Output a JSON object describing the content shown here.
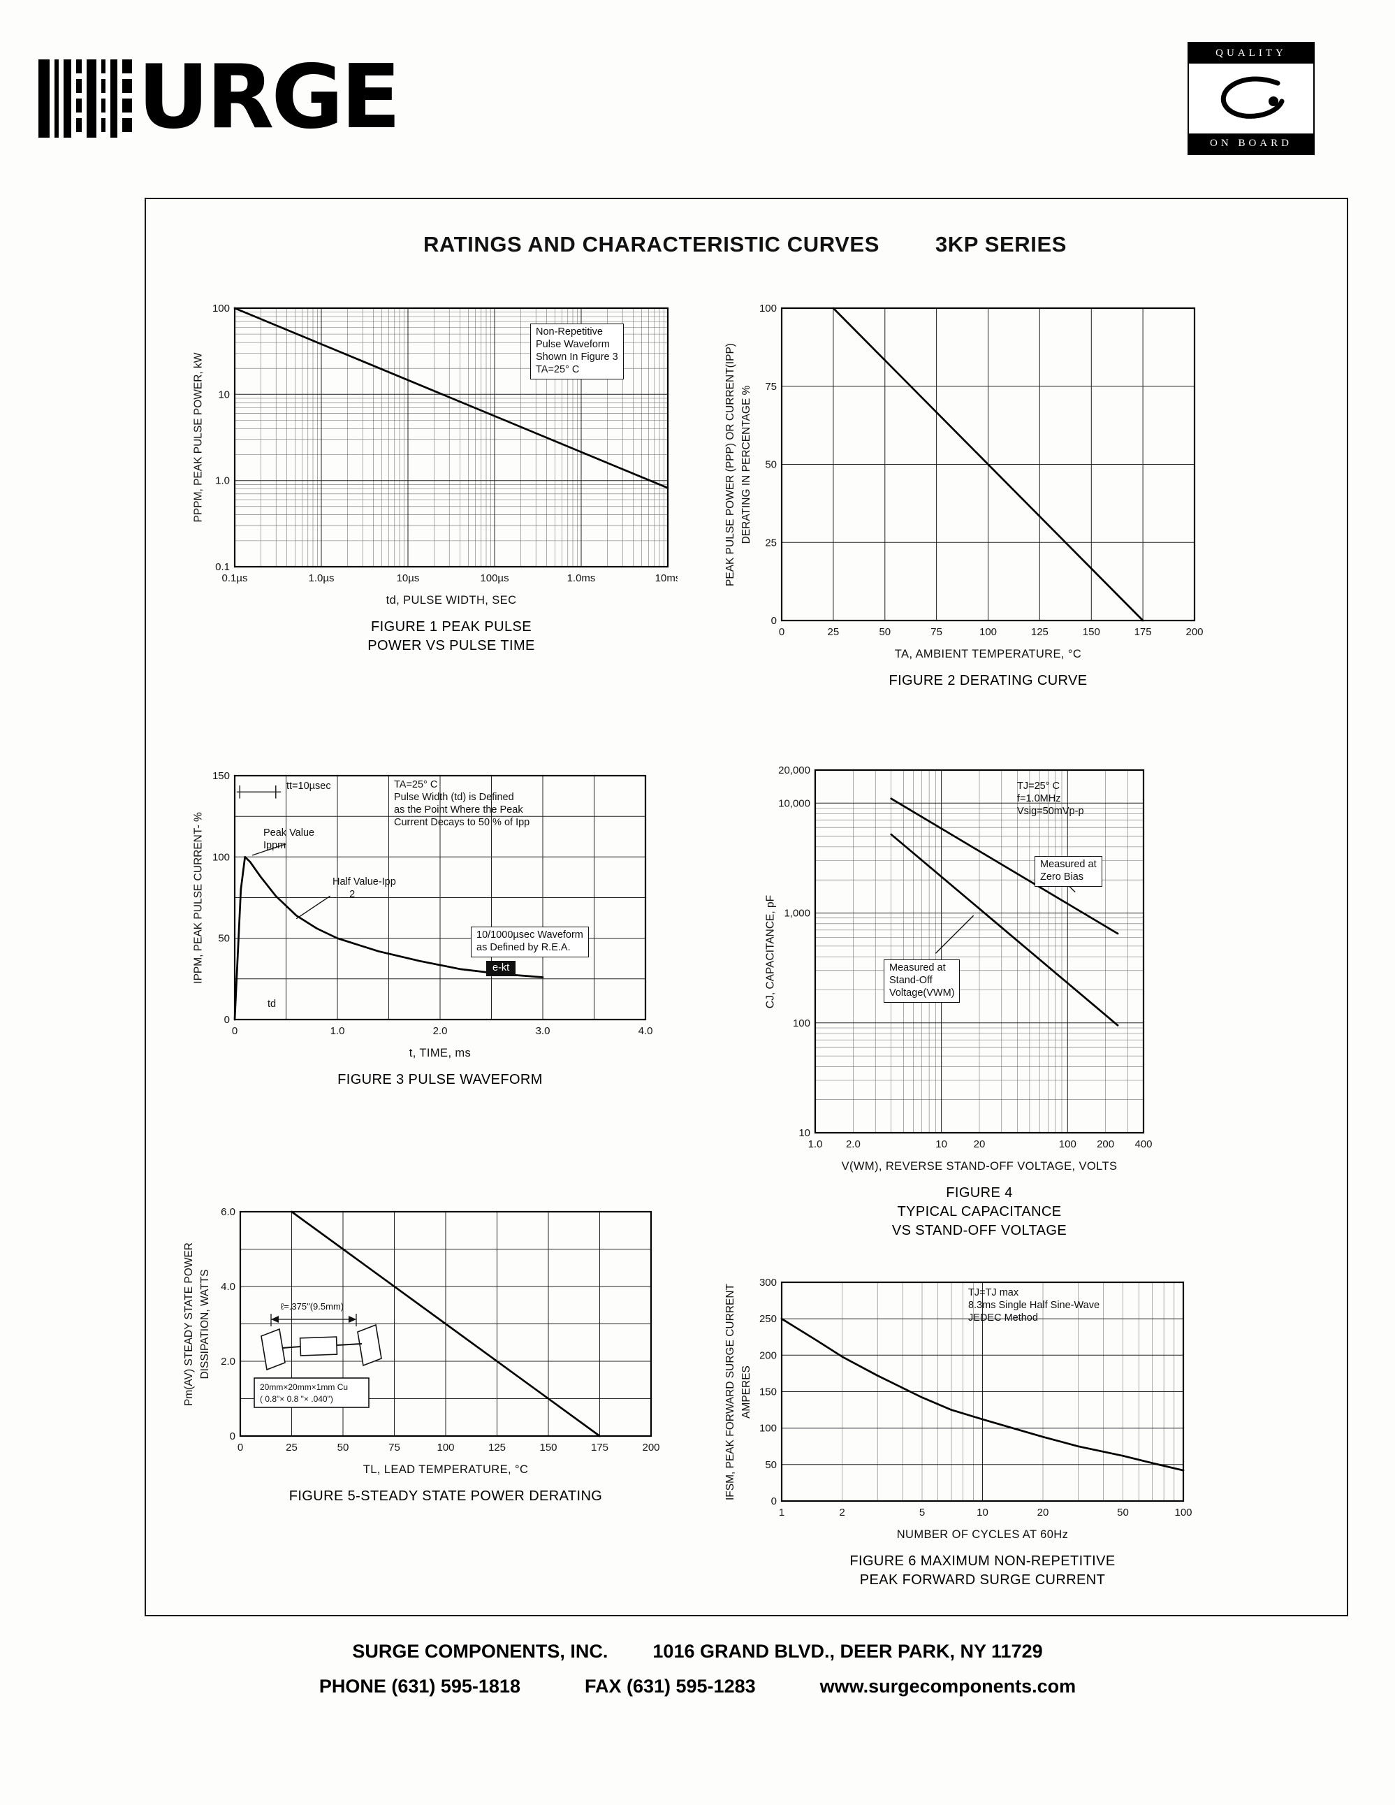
{
  "page": {
    "title": "RATINGS AND CHARACTERISTIC CURVES",
    "series": "3KP SERIES",
    "footer": {
      "company": "SURGE COMPONENTS, INC.",
      "address": "1016 GRAND BLVD., DEER PARK, NY  11729",
      "phone": "PHONE (631) 595-1818",
      "fax": "FAX  (631) 595-1283",
      "web": "www.surgecomponents.com"
    }
  },
  "logos": {
    "brand_text": "URGE",
    "quality_top": "QUALITY",
    "quality_bottom": "ON BOARD"
  },
  "figure5_inset": {
    "dim_label": "ℓ=.375\"(9.5mm)",
    "cu_line1": "20mm×20mm×1mm Cu",
    "cu_line2": "( 0.8\"× 0.8 \"× .040\")"
  },
  "chart_data": [
    {
      "id": "fig1",
      "type": "line",
      "caption": [
        "FIGURE 1 PEAK PULSE",
        "POWER VS PULSE TIME"
      ],
      "xlabel": "td, PULSE WIDTH, SEC",
      "ylabel": [
        "PPPM, PEAK PULSE POWER, kW"
      ],
      "x": {
        "type": "log",
        "min": 1e-07,
        "max": 0.01,
        "ticks": [
          {
            "v": 1e-07,
            "label": "0.1µs"
          },
          {
            "v": 1e-06,
            "label": "1.0µs"
          },
          {
            "v": 1e-05,
            "label": "10µs"
          },
          {
            "v": 0.0001,
            "label": "100µs"
          },
          {
            "v": 0.001,
            "label": "1.0ms"
          },
          {
            "v": 0.01,
            "label": "10ms"
          }
        ]
      },
      "y": {
        "type": "log",
        "min": 0.1,
        "max": 100,
        "ticks": [
          {
            "v": 0.1,
            "label": "0.1"
          },
          {
            "v": 1,
            "label": "1.0"
          },
          {
            "v": 10,
            "label": "10"
          },
          {
            "v": 100,
            "label": "100"
          }
        ]
      },
      "series": [
        {
          "name": "peak pulse power",
          "points": [
            [
              1e-07,
              100
            ],
            [
              0.01,
              0.82
            ]
          ]
        }
      ],
      "annotations": [
        {
          "x": 0.00026,
          "y": 66,
          "box": true,
          "lines": [
            "Non-Repetitive",
            "Pulse Waveform",
            "Shown In Figure 3",
            "TA=25° C"
          ]
        }
      ]
    },
    {
      "id": "fig2",
      "type": "line",
      "caption": [
        "FIGURE 2 DERATING CURVE"
      ],
      "xlabel": "TA, AMBIENT  TEMPERATURE, °C",
      "ylabel": [
        "PEAK PULSE POWER (PPP) OR CURRENT(IPP)",
        "DERATING IN PERCENTAGE %"
      ],
      "x": {
        "type": "linear",
        "min": 0,
        "max": 200,
        "grid": 25,
        "ticks": [
          {
            "v": 0,
            "label": "0"
          },
          {
            "v": 25,
            "label": "25"
          },
          {
            "v": 50,
            "label": "50"
          },
          {
            "v": 75,
            "label": "75"
          },
          {
            "v": 100,
            "label": "100"
          },
          {
            "v": 125,
            "label": "125"
          },
          {
            "v": 150,
            "label": "150"
          },
          {
            "v": 175,
            "label": "175"
          },
          {
            "v": 200,
            "label": "200"
          }
        ]
      },
      "y": {
        "type": "linear",
        "min": 0,
        "max": 100,
        "grid": 25,
        "ticks": [
          {
            "v": 0,
            "label": "0"
          },
          {
            "v": 25,
            "label": "25"
          },
          {
            "v": 50,
            "label": "50"
          },
          {
            "v": 75,
            "label": "75"
          },
          {
            "v": 100,
            "label": "100"
          }
        ]
      },
      "series": [
        {
          "name": "derating",
          "points": [
            [
              25,
              100
            ],
            [
              175,
              0
            ]
          ]
        }
      ],
      "annotations": []
    },
    {
      "id": "fig3",
      "type": "line",
      "caption": [
        "FIGURE 3  PULSE WAVEFORM"
      ],
      "xlabel": "t, TIME, ms",
      "ylabel": [
        "IPPM, PEAK PULSE CURRENT- %"
      ],
      "x": {
        "type": "linear",
        "min": 0,
        "max": 4,
        "grid": 0.5,
        "ticks": [
          {
            "v": 0,
            "label": "0"
          },
          {
            "v": 1,
            "label": "1.0"
          },
          {
            "v": 2,
            "label": "2.0"
          },
          {
            "v": 3,
            "label": "3.0"
          },
          {
            "v": 4,
            "label": "4.0"
          }
        ]
      },
      "y": {
        "type": "linear",
        "min": 0,
        "max": 150,
        "grid": 25,
        "ticks": [
          {
            "v": 0,
            "label": "0"
          },
          {
            "v": 50,
            "label": "50"
          },
          {
            "v": 100,
            "label": "100"
          },
          {
            "v": 150,
            "label": "150"
          }
        ]
      },
      "series": [
        {
          "name": "10/1000usec pulse waveform",
          "points": [
            [
              0,
              0
            ],
            [
              0.03,
              40
            ],
            [
              0.06,
              80
            ],
            [
              0.1,
              100
            ],
            [
              0.15,
              97
            ],
            [
              0.25,
              88
            ],
            [
              0.4,
              76
            ],
            [
              0.6,
              64
            ],
            [
              0.8,
              56
            ],
            [
              1.0,
              50
            ],
            [
              1.4,
              42
            ],
            [
              1.8,
              36
            ],
            [
              2.2,
              31
            ],
            [
              2.6,
              28
            ],
            [
              3.0,
              26
            ]
          ]
        }
      ],
      "lines": [
        {
          "x1": 0.02,
          "y1": 140,
          "x2": 0.45,
          "y2": 140
        },
        {
          "x1": 0.05,
          "y1": 136,
          "x2": 0.05,
          "y2": 144
        },
        {
          "x1": 0.4,
          "y1": 136,
          "x2": 0.4,
          "y2": 144
        },
        {
          "x1": 0.5,
          "y1": 108,
          "x2": 0.17,
          "y2": 101
        },
        {
          "x1": 0.93,
          "y1": 76,
          "x2": 0.6,
          "y2": 62
        }
      ],
      "annotations": [
        {
          "x": 0.5,
          "y": 147,
          "lines": [
            "tt=10µsec"
          ]
        },
        {
          "x": 1.55,
          "y": 148,
          "lines": [
            "TA=25° C",
            "Pulse Width (td) is Defined",
            "as the Point Where the Peak",
            "Current Decays to 50 % of Ipp"
          ]
        },
        {
          "x": 0.28,
          "y": 118,
          "lines": [
            "Peak Value",
            "Ippm"
          ]
        },
        {
          "x": 0.95,
          "y": 88,
          "lines": [
            "Half Value-Ipp",
            "      2"
          ]
        },
        {
          "x": 2.3,
          "y": 57,
          "box": true,
          "lines": [
            "10/1000µsec Waveform",
            "as Defined by R.E.A."
          ]
        },
        {
          "x": 2.45,
          "y": 36,
          "dark": true,
          "lines": [
            "e-kt"
          ]
        },
        {
          "x": 0.32,
          "y": 13,
          "lines": [
            "td"
          ]
        }
      ]
    },
    {
      "id": "fig4",
      "type": "line",
      "caption": [
        "FIGURE 4",
        "TYPICAL CAPACITANCE",
        "VS STAND-OFF VOLTAGE"
      ],
      "xlabel": "V(WM), REVERSE STAND-OFF VOLTAGE, VOLTS",
      "ylabel": [
        "CJ, CAPACITANCE, pF"
      ],
      "x": {
        "type": "log",
        "min": 1,
        "max": 400,
        "ticks": [
          {
            "v": 1,
            "label": "1.0"
          },
          {
            "v": 2,
            "label": "2.0"
          },
          {
            "v": 10,
            "label": "10"
          },
          {
            "v": 20,
            "label": "20"
          },
          {
            "v": 100,
            "label": "100"
          },
          {
            "v": 200,
            "label": "200"
          },
          {
            "v": 400,
            "label": "400"
          }
        ]
      },
      "y": {
        "type": "log",
        "min": 10,
        "max": 20000,
        "ticks": [
          {
            "v": 10,
            "label": "10"
          },
          {
            "v": 100,
            "label": "100"
          },
          {
            "v": 1000,
            "label": "1,000"
          },
          {
            "v": 10000,
            "label": "10,000"
          },
          {
            "v": 20000,
            "label": "20,000"
          }
        ]
      },
      "series": [
        {
          "name": "measured at zero bias",
          "points": [
            [
              4,
              11000
            ],
            [
              250,
              650
            ]
          ]
        },
        {
          "name": "measured at stand-off voltage",
          "points": [
            [
              4,
              5200
            ],
            [
              250,
              95
            ]
          ]
        }
      ],
      "lines": [
        {
          "x1": 75,
          "y1": 2500,
          "x2": 115,
          "y2": 1550
        },
        {
          "x1": 9,
          "y1": 430,
          "x2": 18,
          "y2": 950
        }
      ],
      "annotations": [
        {
          "x": 40,
          "y": 16000,
          "lines": [
            "TJ=25° C",
            "f=1.0MHz",
            "Vsig=50mVp-p"
          ]
        },
        {
          "x": 55,
          "y": 3300,
          "box": true,
          "lines": [
            "Measured at",
            "Zero Bias"
          ]
        },
        {
          "x": 3.5,
          "y": 380,
          "box": true,
          "lines": [
            "Measured at",
            "Stand-Off",
            "Voltage(VWM)"
          ]
        }
      ]
    },
    {
      "id": "fig5",
      "type": "line",
      "caption": [
        "FIGURE 5-STEADY STATE POWER DERATING"
      ],
      "xlabel": "TL, LEAD  TEMPERATURE, °C",
      "ylabel": [
        "Pm(AV) STEADY STATE POWER",
        "DISSIPATION, WATTS"
      ],
      "x": {
        "type": "linear",
        "min": 0,
        "max": 200,
        "grid": 25,
        "ticks": [
          {
            "v": 0,
            "label": "0"
          },
          {
            "v": 25,
            "label": "25"
          },
          {
            "v": 50,
            "label": "50"
          },
          {
            "v": 75,
            "label": "75"
          },
          {
            "v": 100,
            "label": "100"
          },
          {
            "v": 125,
            "label": "125"
          },
          {
            "v": 150,
            "label": "150"
          },
          {
            "v": 175,
            "label": "175"
          },
          {
            "v": 200,
            "label": "200"
          }
        ]
      },
      "y": {
        "type": "linear",
        "min": 0,
        "max": 6,
        "grid": 1,
        "ticks": [
          {
            "v": 0,
            "label": "0"
          },
          {
            "v": 2,
            "label": "2.0"
          },
          {
            "v": 4,
            "label": "4.0"
          },
          {
            "v": 6,
            "label": "6.0"
          }
        ]
      },
      "series": [
        {
          "name": "steady state power derating",
          "points": [
            [
              25,
              6
            ],
            [
              175,
              0
            ]
          ]
        }
      ],
      "annotations": []
    },
    {
      "id": "fig6",
      "type": "line",
      "caption": [
        "FIGURE 6 MAXIMUM NON-REPETITIVE",
        "PEAK FORWARD SURGE CURRENT"
      ],
      "xlabel": "NUMBER  OF  CYCLES  AT  60Hz",
      "ylabel": [
        "IFSM, PEAK FORWARD SURGE CURRENT",
        "AMPERES"
      ],
      "x": {
        "type": "log",
        "min": 1,
        "max": 100,
        "ticks": [
          {
            "v": 1,
            "label": "1"
          },
          {
            "v": 2,
            "label": "2"
          },
          {
            "v": 5,
            "label": "5"
          },
          {
            "v": 10,
            "label": "10"
          },
          {
            "v": 20,
            "label": "20"
          },
          {
            "v": 50,
            "label": "50"
          },
          {
            "v": 100,
            "label": "100"
          }
        ]
      },
      "y": {
        "type": "linear",
        "min": 0,
        "max": 300,
        "grid": 50,
        "ticks": [
          {
            "v": 0,
            "label": "0"
          },
          {
            "v": 50,
            "label": "50"
          },
          {
            "v": 100,
            "label": "100"
          },
          {
            "v": 150,
            "label": "150"
          },
          {
            "v": 200,
            "label": "200"
          },
          {
            "v": 250,
            "label": "250"
          },
          {
            "v": 300,
            "label": "300"
          }
        ]
      },
      "series": [
        {
          "name": "peak forward surge current",
          "points": [
            [
              1,
              250
            ],
            [
              1.5,
              220
            ],
            [
              2,
              198
            ],
            [
              3,
              172
            ],
            [
              5,
              142
            ],
            [
              7,
              125
            ],
            [
              10,
              112
            ],
            [
              15,
              98
            ],
            [
              20,
              88
            ],
            [
              30,
              75
            ],
            [
              50,
              62
            ],
            [
              70,
              52
            ],
            [
              100,
              42
            ]
          ]
        }
      ],
      "annotations": [
        {
          "x": 8.5,
          "y": 293,
          "lines": [
            "TJ=TJ max",
            "8.3ms Single Half Sine-Wave",
            "JEDEC Method"
          ]
        }
      ]
    }
  ]
}
